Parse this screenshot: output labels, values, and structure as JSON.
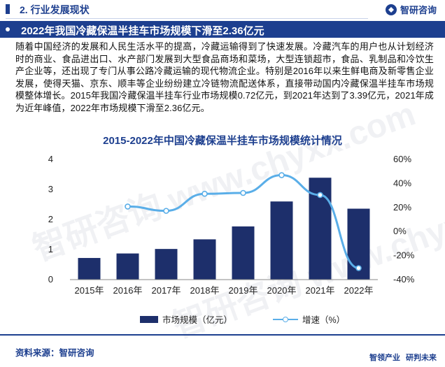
{
  "section": {
    "label": "2. 行业发展现状"
  },
  "brand": {
    "name": "智研咨询"
  },
  "title": "2022年我国冷藏保温半挂车市场规模下滑至2.36亿元",
  "paragraph": "随着中国经济的发展和人民生活水平的提高，冷藏运输得到了快速发展。冷藏汽车的用户也从计划经济时的商业、食品进出口、水产部门发展到大型食品商场和菜场，大型连锁超市，食品、乳制品和冷饮生产企业等，还出现了专门从事公路冷藏运输的现代物流企业。特别是2016年以来生鲜电商及新零售企业发展，使得天猫、京东、顺丰等企业纷纷建立冷链物流配送体系，直接带动国内冷藏保温半挂车市场规模整体增长。2015年我国冷藏保温半挂车行业市场规模0.72亿元，到2021年达到了3.39亿元，2021年成为近年峰值，2022年市场规模下滑至2.36亿元。",
  "chart_data": {
    "type": "bar",
    "title": "2015-2022年中国冷藏保温半挂车市场规模统计情况",
    "categories": [
      "2015年",
      "2016年",
      "2017年",
      "2018年",
      "2019年",
      "2020年",
      "2021年",
      "2022年"
    ],
    "series": [
      {
        "name": "市场规模（亿元）",
        "type": "bar",
        "axis": "left",
        "color": "#1d2f6b",
        "values": [
          0.72,
          0.87,
          1.02,
          1.34,
          1.77,
          2.6,
          3.39,
          2.36
        ]
      },
      {
        "name": "增速（%）",
        "type": "line",
        "axis": "right",
        "color": "#5aaee8",
        "values": [
          null,
          20.8,
          17.2,
          31.4,
          32.1,
          46.9,
          30.4,
          -30.4
        ]
      }
    ],
    "y_left": {
      "ticks": [
        "0",
        "1",
        "2",
        "3",
        "4"
      ],
      "range": [
        0,
        4
      ]
    },
    "y_right": {
      "ticks": [
        "-40%",
        "-20%",
        "0%",
        "20%",
        "40%",
        "60%"
      ],
      "range": [
        -40,
        60
      ]
    },
    "grid": false,
    "legend": "bottom"
  },
  "legend": {
    "bar_label": "市场规模（亿元）",
    "line_label": "增速（%）"
  },
  "source": "资料来源：智研咨询",
  "footer_brand": {
    "part1": "智领产业",
    "part2": "研判未来"
  },
  "watermark": "智研咨询 www.chyxx.com"
}
